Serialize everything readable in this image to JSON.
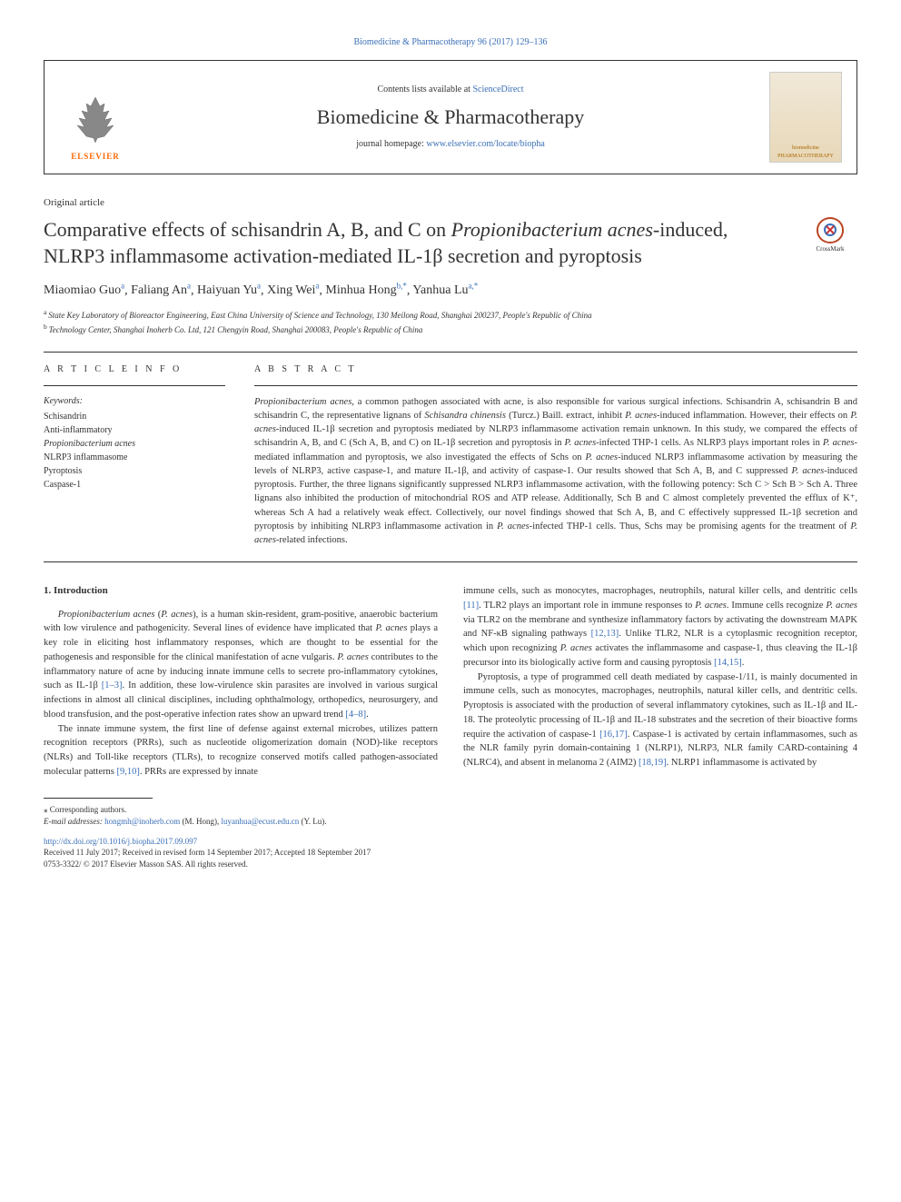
{
  "top_reference": "Biomedicine & Pharmacotherapy 96 (2017) 129–136",
  "header": {
    "contents_prefix": "Contents lists available at ",
    "contents_link": "ScienceDirect",
    "journal_name": "Biomedicine & Pharmacotherapy",
    "homepage_prefix": "journal homepage: ",
    "homepage_link": "www.elsevier.com/locate/biopha",
    "elsevier_label": "ELSEVIER",
    "cover_label_top": "biomedicine",
    "cover_label_bottom": "PHARMACOTHERAPY",
    "crossmark_label": "CrossMark"
  },
  "article_type": "Original article",
  "title_parts": [
    {
      "text": "Comparative effects of schisandrin A, B, and C on ",
      "italic": false
    },
    {
      "text": "Propionibacterium acnes",
      "italic": true
    },
    {
      "text": "-induced, NLRP3 inflammasome activation-mediated IL-1β secretion and pyroptosis",
      "italic": false
    }
  ],
  "authors": [
    {
      "name": "Miaomiao Guo",
      "sup": "a"
    },
    {
      "name": "Faliang An",
      "sup": "a"
    },
    {
      "name": "Haiyuan Yu",
      "sup": "a"
    },
    {
      "name": "Xing Wei",
      "sup": "a"
    },
    {
      "name": "Minhua Hong",
      "sup": "b,*"
    },
    {
      "name": "Yanhua Lu",
      "sup": "a,*"
    }
  ],
  "affiliations": [
    {
      "sup": "a",
      "text": "State Key Laboratory of Bioreactor Engineering, East China University of Science and Technology, 130 Meilong Road, Shanghai 200237, People's Republic of China"
    },
    {
      "sup": "b",
      "text": "Technology Center, Shanghai Inoherb Co. Ltd, 121 Chengyin Road, Shanghai 200083, People's Republic of China"
    }
  ],
  "article_info": {
    "heading": "A R T I C L E  I N F O",
    "keywords_label": "Keywords:",
    "keywords": [
      "Schisandrin",
      "Anti-inflammatory",
      "Propionibacterium acnes",
      "NLRP3 inflammasome",
      "Pyroptosis",
      "Caspase-1"
    ]
  },
  "abstract": {
    "heading": "A B S T R A C T",
    "text_parts": [
      {
        "text": "Propionibacterium acnes",
        "italic": true
      },
      {
        "text": ", a common pathogen associated with acne, is also responsible for various surgical infections. Schisandrin A, schisandrin B and schisandrin C, the representative lignans of ",
        "italic": false
      },
      {
        "text": "Schisandra chinensis",
        "italic": true
      },
      {
        "text": " (Turcz.) Baill. extract, inhibit ",
        "italic": false
      },
      {
        "text": "P. acnes",
        "italic": true
      },
      {
        "text": "-induced inflammation. However, their effects on ",
        "italic": false
      },
      {
        "text": "P. acnes",
        "italic": true
      },
      {
        "text": "-induced IL-1β secretion and pyroptosis mediated by NLRP3 inflammasome activation remain unknown. In this study, we compared the effects of schisandrin A, B, and C (Sch A, B, and C) on IL-1β secretion and pyroptosis in ",
        "italic": false
      },
      {
        "text": "P. acnes",
        "italic": true
      },
      {
        "text": "-infected THP-1 cells. As NLRP3 plays important roles in ",
        "italic": false
      },
      {
        "text": "P. acnes",
        "italic": true
      },
      {
        "text": "-mediated inflammation and pyroptosis, we also investigated the effects of Schs on ",
        "italic": false
      },
      {
        "text": "P. acnes",
        "italic": true
      },
      {
        "text": "-induced NLRP3 inflammasome activation by measuring the levels of NLRP3, active caspase-1, and mature IL-1β, and activity of caspase-1. Our results showed that Sch A, B, and C suppressed ",
        "italic": false
      },
      {
        "text": "P. acnes",
        "italic": true
      },
      {
        "text": "-induced pyroptosis. Further, the three lignans significantly suppressed NLRP3 inflammasome activation, with the following potency: Sch C > Sch B > Sch A. Three lignans also inhibited the production of mitochondrial ROS and ATP release. Additionally, Sch B and C almost completely prevented the efflux of K⁺, whereas Sch A had a relatively weak effect. Collectively, our novel findings showed that Sch A, B, and C effectively suppressed IL-1β secretion and pyroptosis by inhibiting NLRP3 inflammasome activation in ",
        "italic": false
      },
      {
        "text": "P. acnes",
        "italic": true
      },
      {
        "text": "-infected THP-1 cells. Thus, Schs may be promising agents for the treatment of ",
        "italic": false
      },
      {
        "text": "P. acnes",
        "italic": true
      },
      {
        "text": "-related infections.",
        "italic": false
      }
    ]
  },
  "body": {
    "intro_heading": "1. Introduction",
    "left_paras": [
      [
        {
          "text": "Propionibacterium acnes",
          "italic": true
        },
        {
          "text": " (",
          "italic": false
        },
        {
          "text": "P. acnes",
          "italic": true
        },
        {
          "text": "), is a human skin-resident, gram-positive, anaerobic bacterium with low virulence and pathogenicity. Several lines of evidence have implicated that ",
          "italic": false
        },
        {
          "text": "P. acnes",
          "italic": true
        },
        {
          "text": " plays a key role in eliciting host inflammatory responses, which are thought to be essential for the pathogenesis and responsible for the clinical manifestation of acne vulgaris. ",
          "italic": false
        },
        {
          "text": "P. acnes",
          "italic": true
        },
        {
          "text": " contributes to the inflammatory nature of acne by inducing innate immune cells to secrete pro-inflammatory cytokines, such as IL-1β ",
          "italic": false
        },
        {
          "text": "[1–3]",
          "ref": true
        },
        {
          "text": ". In addition, these low-virulence skin parasites are involved in various surgical infections in almost all clinical disciplines, including ophthalmology, orthopedics, neurosurgery, and blood transfusion, and the post-operative infection rates show an upward trend ",
          "italic": false
        },
        {
          "text": "[4–8]",
          "ref": true
        },
        {
          "text": ".",
          "italic": false
        }
      ],
      [
        {
          "text": "The innate immune system, the first line of defense against external microbes, utilizes pattern recognition receptors (PRRs), such as nucleotide oligomerization domain (NOD)-like receptors (NLRs) and Toll-like receptors (TLRs), to recognize conserved motifs called pathogen-associated molecular patterns ",
          "italic": false
        },
        {
          "text": "[9,10]",
          "ref": true
        },
        {
          "text": ". PRRs are expressed by innate",
          "italic": false
        }
      ]
    ],
    "right_paras": [
      [
        {
          "text": "immune cells, such as monocytes, macrophages, neutrophils, natural killer cells, and dentritic cells ",
          "italic": false
        },
        {
          "text": "[11]",
          "ref": true
        },
        {
          "text": ". TLR2 plays an important role in immune responses to ",
          "italic": false
        },
        {
          "text": "P. acnes",
          "italic": true
        },
        {
          "text": ". Immune cells recognize ",
          "italic": false
        },
        {
          "text": "P. acnes",
          "italic": true
        },
        {
          "text": " via TLR2 on the membrane and synthesize inflammatory factors by activating the downstream MAPK and NF-κB signaling pathways ",
          "italic": false
        },
        {
          "text": "[12,13]",
          "ref": true
        },
        {
          "text": ". Unlike TLR2, NLR is a cytoplasmic recognition receptor, which upon recognizing ",
          "italic": false
        },
        {
          "text": "P. acnes",
          "italic": true
        },
        {
          "text": " activates the inflammasome and caspase-1, thus cleaving the IL-1β precursor into its biologically active form and causing pyroptosis ",
          "italic": false
        },
        {
          "text": "[14,15]",
          "ref": true
        },
        {
          "text": ".",
          "italic": false
        }
      ],
      [
        {
          "text": "Pyroptosis, a type of programmed cell death mediated by caspase-1/11, is mainly documented in immune cells, such as monocytes, macrophages, neutrophils, natural killer cells, and dentritic cells. Pyroptosis is associated with the production of several inflammatory cytokines, such as IL-1β and IL-18. The proteolytic processing of IL-1β and IL-18 substrates and the secretion of their bioactive forms require the activation of caspase-1 ",
          "italic": false
        },
        {
          "text": "[16,17]",
          "ref": true
        },
        {
          "text": ". Caspase-1 is activated by certain inflammasomes, such as the NLR family pyrin domain-containing 1 (NLRP1), NLRP3, NLR family CARD-containing 4 (NLRC4), and absent in melanoma 2 (AIM2) ",
          "italic": false
        },
        {
          "text": "[18,19]",
          "ref": true
        },
        {
          "text": ". NLRP1 inflammasome is activated by",
          "italic": false
        }
      ]
    ]
  },
  "footer": {
    "corr_label": "⁎ Corresponding authors.",
    "email_label": "E-mail addresses: ",
    "emails": [
      {
        "addr": "hongmh@inoherb.com",
        "who": "(M. Hong)"
      },
      {
        "addr": "luyanhua@ecust.edu.cn",
        "who": "(Y. Lu)."
      }
    ],
    "doi": "http://dx.doi.org/10.1016/j.biopha.2017.09.097",
    "received": "Received 11 July 2017; Received in revised form 14 September 2017; Accepted 18 September 2017",
    "copyright": "0753-3322/ © 2017 Elsevier Masson SAS. All rights reserved."
  },
  "colors": {
    "link": "#3a6fb7",
    "elsevier_orange": "#ff6600",
    "text": "#333333",
    "rule": "#333333"
  }
}
